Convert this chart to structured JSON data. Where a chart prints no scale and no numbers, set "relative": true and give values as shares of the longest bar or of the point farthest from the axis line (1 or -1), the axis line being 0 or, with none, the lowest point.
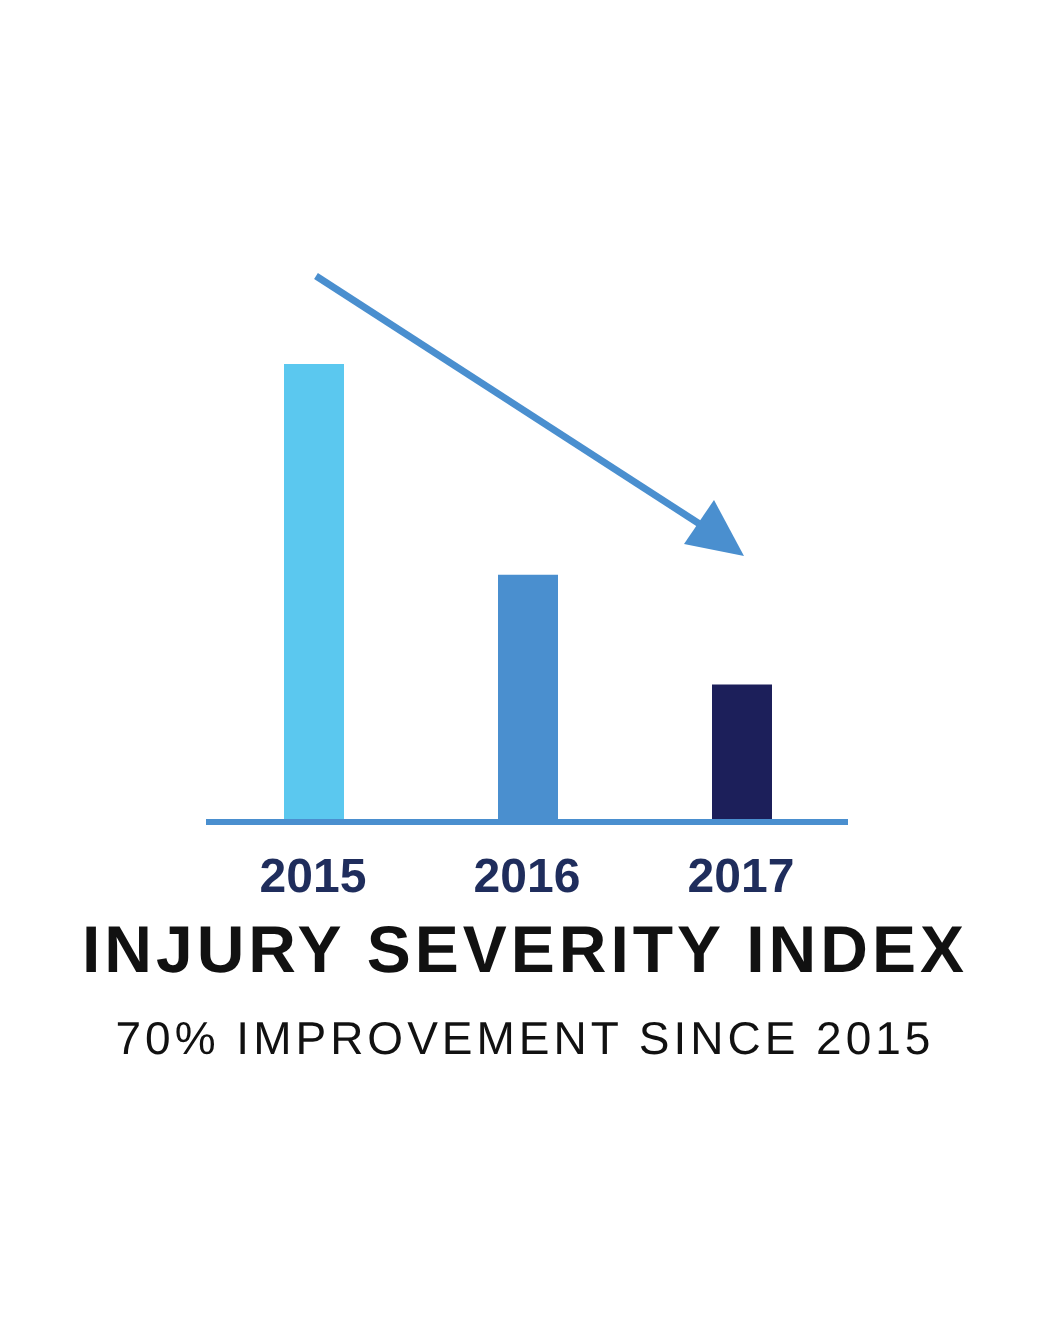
{
  "chart_data": {
    "type": "bar",
    "title": "INJURY SEVERITY INDEX",
    "subtitle": "70% IMPROVEMENT SINCE 2015",
    "categories": [
      "2015",
      "2016",
      "2017"
    ],
    "values": [
      1,
      0.54,
      0.3
    ],
    "colors": [
      "#5bc8ef",
      "#4a8fcf",
      "#1c1f5a"
    ],
    "relative": true
  }
}
